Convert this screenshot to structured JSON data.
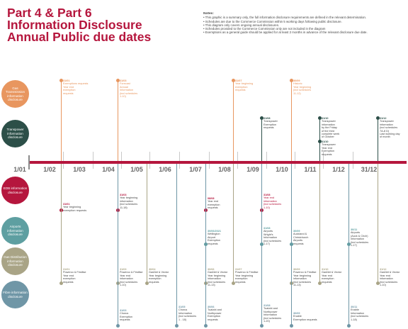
{
  "title": {
    "line1": "Part 4 & Part 6",
    "line2": "Information Disclosure",
    "line3": "Annual Public due dates"
  },
  "notes": {
    "heading": "Notes:",
    "items": [
      "• This graphic is a summary only, the full information disclosure requirements are defined in the relevant determination.",
      "• Schedules are due to the Commerce Commission within 5 working days following public disclosure.",
      "• This diagram only covers ongoing annual disclosures.",
      "• Schedules provided to the Commerce Commission only are not included in the diagram",
      "• Exemptions as a general guide should be applied for at least 2 months in advance of the relevant disclosure due date."
    ]
  },
  "axis_labels": [
    "1/01",
    "1/02",
    "1/03",
    "1/04",
    "1/05",
    "1/06",
    "1/07",
    "1/08",
    "1/09",
    "1/10",
    "1/11",
    "1/12",
    "31/12"
  ],
  "colors": {
    "gas_transmission": "#e8965f",
    "transpower": "#2c4f48",
    "edb": "#b5163d",
    "airports": "#5e9fa1",
    "gas_distribution": "#a9a486",
    "fibre": "#6f96a6",
    "axis": "#b5163d",
    "title": "#b5163d"
  },
  "sectors": [
    {
      "key": "gas_transmission",
      "label": "Gas Transmission information disclosure",
      "color": "#e8965f"
    },
    {
      "key": "transpower",
      "label": "Transpower information disclosure",
      "color": "#2c4f48"
    },
    {
      "key": "edb",
      "label": "EDB information disclosure",
      "color": "#b5163d"
    },
    {
      "key": "airports",
      "label": "Airports information disclosure",
      "color": "#5e9fa1"
    },
    {
      "key": "gas_distribution",
      "label": "Gas Distribution information disclosure",
      "color": "#a9a486"
    },
    {
      "key": "fibre",
      "label": "Fibre information disclosure",
      "color": "#6f96a6"
    }
  ],
  "events": [
    {
      "sector": "gas_transmission",
      "date": "31/01",
      "lines": [
        "Exemptions requests",
        "Year end",
        "exemption",
        "requests"
      ]
    },
    {
      "sector": "gas_transmission",
      "date": "31/03",
      "lines": [
        "Forecast",
        "Annual",
        "Information",
        "(incl schedules",
        "1-10)"
      ]
    },
    {
      "sector": "gas_transmission",
      "date": "31/07",
      "lines": [
        "Year beginning",
        "exemption",
        "requests"
      ]
    },
    {
      "sector": "gas_transmission",
      "date": "30/09",
      "lines": [
        "Historic",
        "Year beginning",
        "(incl schedules",
        "11-12)"
      ]
    },
    {
      "sector": "transpower",
      "date": "31/08",
      "lines": [
        "Transpower",
        "Exemption",
        "requests"
      ]
    },
    {
      "sector": "transpower",
      "date": "31/10",
      "lines": [
        "Transpower",
        "information",
        "by the Friday",
        "of the third",
        "complete week",
        "of October"
      ]
    },
    {
      "sector": "transpower",
      "date": "31/10",
      "lines": [
        "Transpower",
        "Year end",
        "Exemption",
        "requests"
      ]
    },
    {
      "sector": "transpower",
      "date": "31/12",
      "lines": [
        "Transpower",
        "information",
        "(incl schedules",
        "7A-8 D)",
        "Last working day",
        "of month"
      ]
    },
    {
      "sector": "edb",
      "date": "31/01",
      "lines": [
        "Year beginning",
        "exemption requests"
      ]
    },
    {
      "sector": "edb",
      "date": "31/03",
      "lines": [
        "Year beginning",
        "information",
        "(incl schedules",
        "11-18)"
      ]
    },
    {
      "sector": "edb",
      "date": "08/08",
      "lines": [
        "Year end",
        "exemption",
        "requests"
      ]
    },
    {
      "sector": "edb",
      "date": "31/08",
      "lines": [
        "Year end",
        "information",
        "(incl schedules",
        "1-10)"
      ]
    },
    {
      "sector": "airports",
      "date": "30/06/2021",
      "lines": [
        "Wellington",
        "Airport",
        "Exemption",
        "requests"
      ]
    },
    {
      "sector": "airports",
      "date": "31/08",
      "lines": [
        "Airports",
        "Wright's",
        "Information",
        "(incl schedules",
        "1-17)"
      ]
    },
    {
      "sector": "airports",
      "date": "30/09",
      "lines": [
        "Auckland &",
        "Christchurch",
        "Airports",
        "requests"
      ]
    },
    {
      "sector": "airports",
      "date": "30/11",
      "lines": [
        "Airports",
        "(Auck & Chch)",
        "Information",
        "(incl schedules",
        "1-17)"
      ]
    },
    {
      "sector": "gas_distribution",
      "date": "31/01",
      "lines": [
        "Powerco & Firstlise",
        "Year end",
        "exemption",
        "requests"
      ]
    },
    {
      "sector": "gas_distribution",
      "date": "31/03",
      "lines": [
        "Powerco & Firstlise",
        "Year end",
        "information",
        "(incl schedules",
        "1-10)"
      ]
    },
    {
      "sector": "gas_distribution",
      "date": "30/04",
      "lines": [
        "GasNet & Vector",
        "Year beginning",
        "exemption",
        "requests"
      ]
    },
    {
      "sector": "gas_distribution",
      "date": "30/06",
      "lines": [
        "GasNet & Vector",
        "Year beginning",
        "information",
        "(incl schedules",
        "11-13)"
      ]
    },
    {
      "sector": "gas_distribution",
      "date": "31/07",
      "lines": [
        "Powerco & Firstlise",
        "Year beginning",
        "exemption",
        "requests"
      ]
    },
    {
      "sector": "gas_distribution",
      "date": "30/09",
      "lines": [
        "Powerco & Firstlise",
        "Year beginning",
        "information",
        "(incl schedules",
        "11-13)"
      ]
    },
    {
      "sector": "gas_distribution",
      "date": "31/10",
      "lines": [
        "GasNet & Vector",
        "Year end",
        "exemption",
        "requests"
      ]
    },
    {
      "sector": "gas_distribution",
      "date": "31/12",
      "lines": [
        "GasNet & Vector",
        "Year end",
        "information",
        "(incl schedules",
        "1-10)"
      ]
    },
    {
      "sector": "fibre",
      "date": "31/03",
      "lines": [
        "Chorus",
        "Exemption",
        "requests"
      ]
    },
    {
      "sector": "fibre",
      "date": "31/05",
      "lines": [
        "Chorus",
        "Information",
        "(incl schedules",
        "1 - 18)"
      ]
    },
    {
      "sector": "fibre",
      "date": "30/06",
      "lines": [
        "Tuatahi and",
        "Northpower",
        "Exemption",
        "requests"
      ]
    },
    {
      "sector": "fibre",
      "date": "31/08",
      "lines": [
        "Tuatahi and",
        "Northpower",
        "Information",
        "(incl schedules",
        "1-20)"
      ]
    },
    {
      "sector": "fibre",
      "date": "30/09",
      "lines": [
        "Enable",
        "Exemption requests"
      ]
    },
    {
      "sector": "fibre",
      "date": "30/11",
      "lines": [
        "Enable",
        "Information",
        "(incl schedules",
        "1-18)"
      ]
    }
  ]
}
